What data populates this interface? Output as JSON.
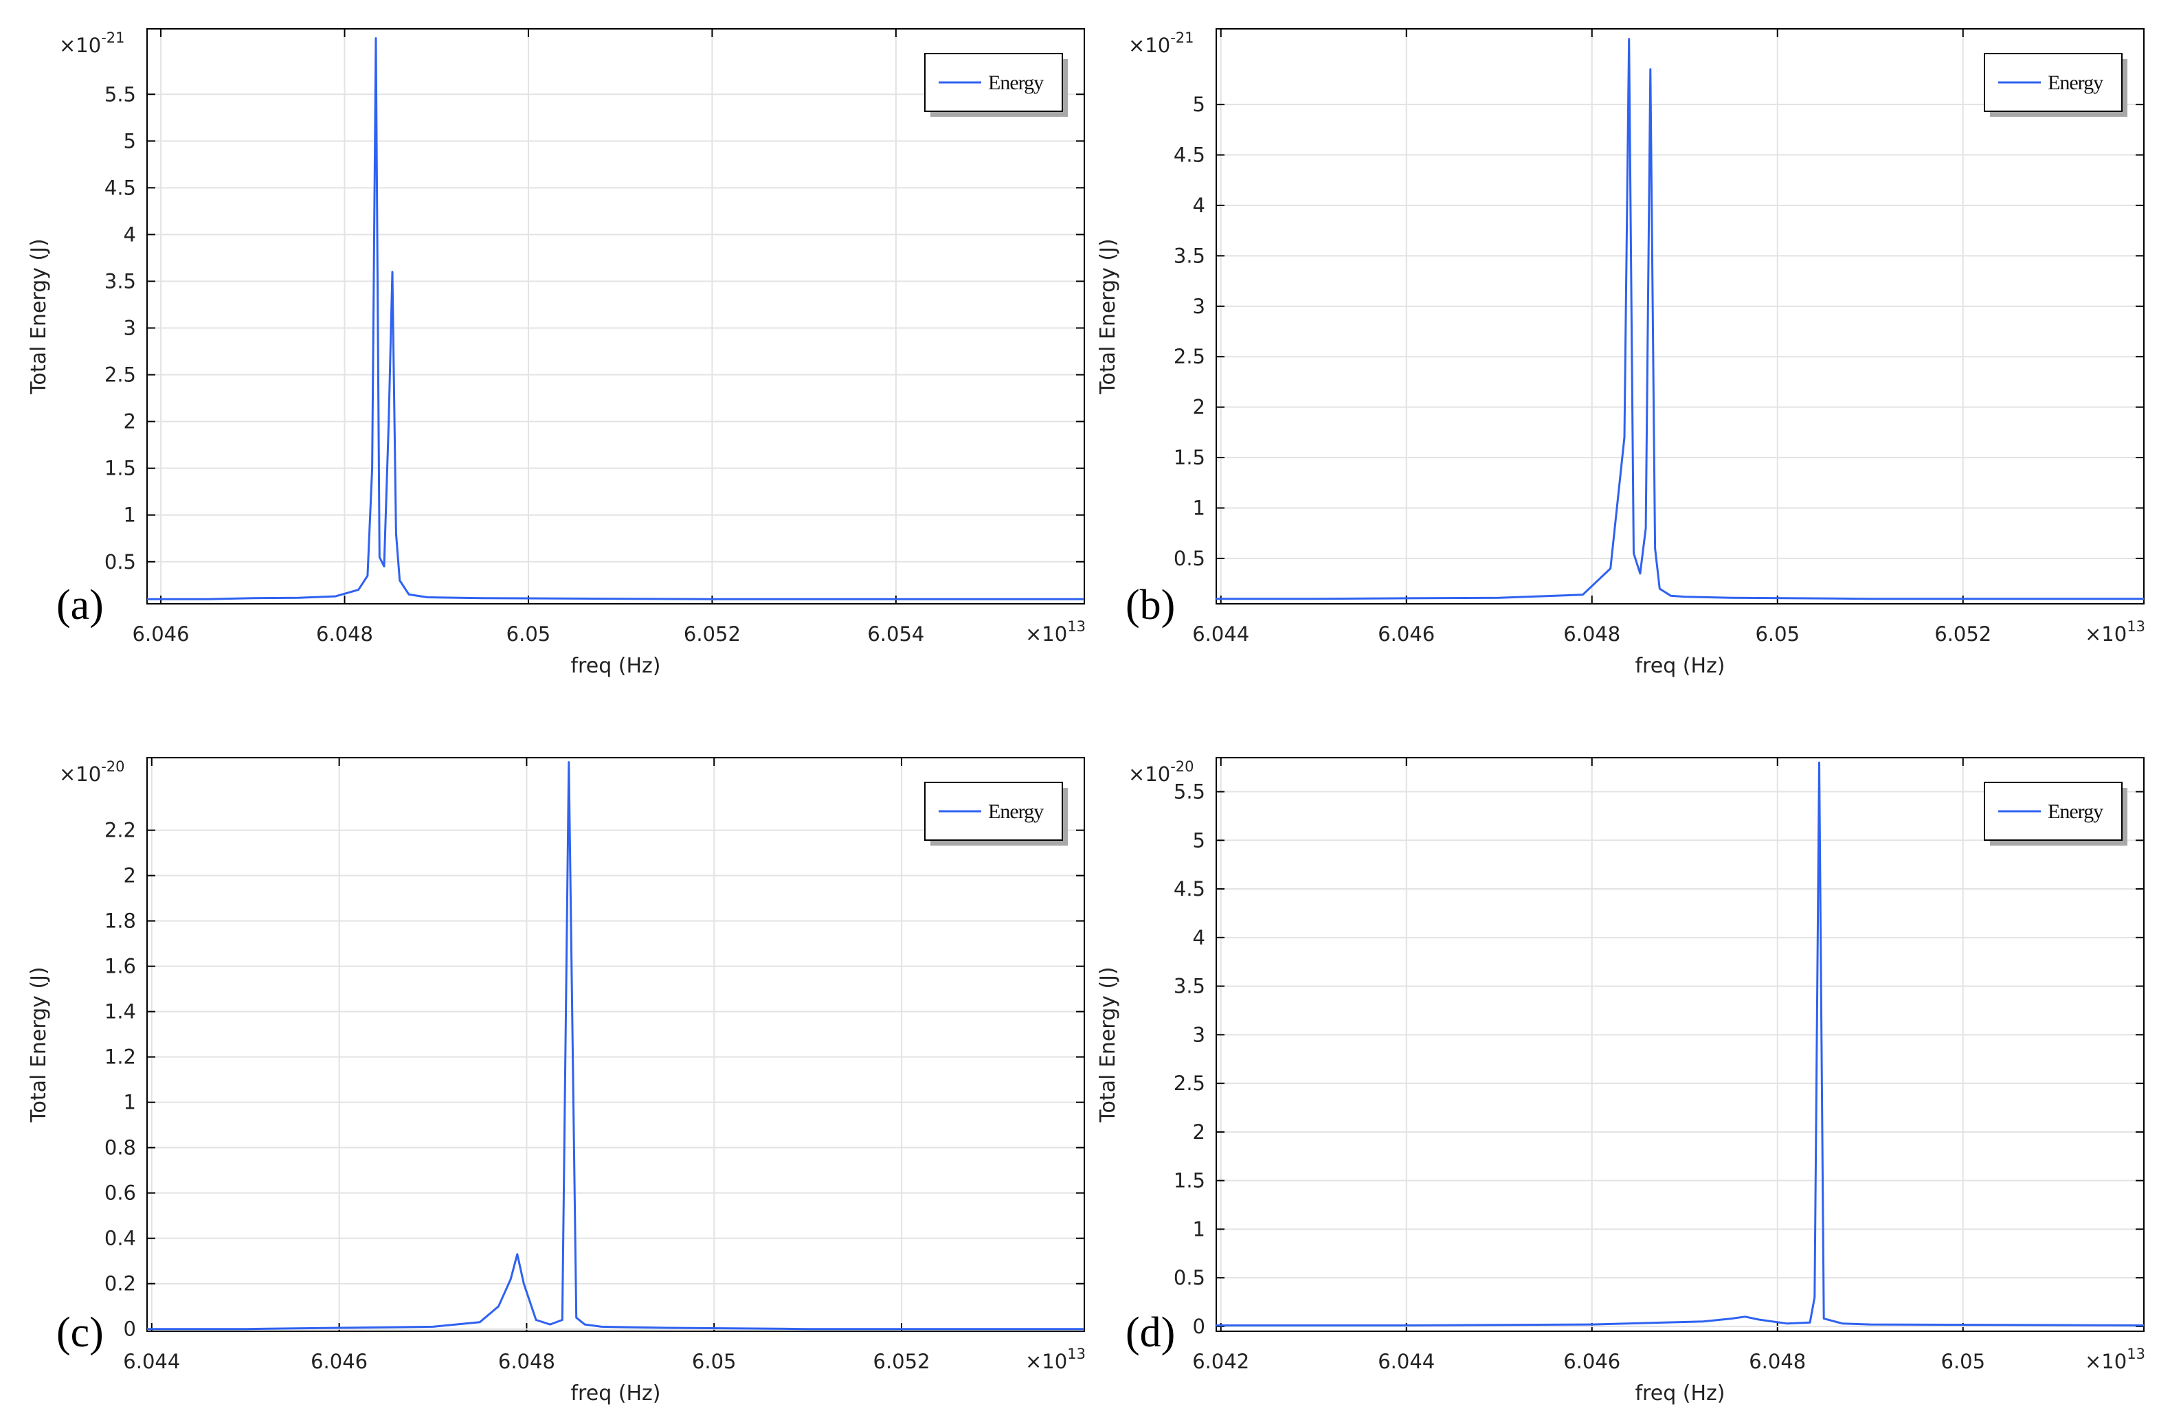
{
  "chart_data": [
    {
      "type": "line",
      "panel_label": "(a)",
      "xlabel": "freq (Hz)",
      "ylabel": "Total Energy (J)",
      "x_multiplier": "×10",
      "x_exp": "13",
      "y_multiplier": "×10",
      "y_exp": "-21",
      "x_ticks": [
        "6.046",
        "6.048",
        "6.05",
        "6.052",
        "6.054"
      ],
      "y_ticks": [
        "0.5",
        "1",
        "1.5",
        "2",
        "2.5",
        "3",
        "3.5",
        "4",
        "4.5",
        "5",
        "5.5"
      ],
      "xlim": [
        6.04585,
        6.05605
      ],
      "ylim": [
        0.05,
        6.2
      ],
      "grid": true,
      "legend": "top-right",
      "series": [
        {
          "name": "Energy",
          "color": "#2f62f0",
          "x": [
            6.04585,
            6.0465,
            6.047,
            6.0475,
            6.0479,
            6.04815,
            6.04825,
            6.0483,
            6.04834,
            6.04838,
            6.04843,
            6.04848,
            6.04852,
            6.04856,
            6.0486,
            6.0487,
            6.0489,
            6.0495,
            6.052,
            6.05605
          ],
          "y": [
            0.1,
            0.1,
            0.11,
            0.115,
            0.13,
            0.2,
            0.35,
            1.5,
            6.1,
            0.55,
            0.45,
            2.0,
            3.6,
            0.8,
            0.3,
            0.15,
            0.12,
            0.11,
            0.1,
            0.1
          ]
        }
      ]
    },
    {
      "type": "line",
      "panel_label": "(b)",
      "xlabel": "freq (Hz)",
      "ylabel": "Total Energy (J)",
      "x_multiplier": "×10",
      "x_exp": "13",
      "y_multiplier": "×10",
      "y_exp": "-21",
      "x_ticks": [
        "6.044",
        "6.046",
        "6.048",
        "6.05",
        "6.052"
      ],
      "y_ticks": [
        "0.5",
        "1",
        "1.5",
        "2",
        "2.5",
        "3",
        "3.5",
        "4",
        "4.5",
        "5"
      ],
      "xlim": [
        6.04395,
        6.05395
      ],
      "ylim": [
        0.05,
        5.75
      ],
      "grid": true,
      "legend": "top-right",
      "series": [
        {
          "name": "Energy",
          "color": "#2f62f0",
          "x": [
            6.04395,
            6.045,
            6.046,
            6.047,
            6.0479,
            6.0482,
            6.04835,
            6.0484,
            6.04845,
            6.04852,
            6.04858,
            6.04863,
            6.04868,
            6.04873,
            6.04885,
            6.049,
            6.0495,
            6.051,
            6.05395
          ],
          "y": [
            0.1,
            0.1,
            0.105,
            0.11,
            0.14,
            0.4,
            1.7,
            5.65,
            0.55,
            0.35,
            0.8,
            5.35,
            0.6,
            0.2,
            0.13,
            0.12,
            0.11,
            0.1,
            0.1
          ]
        }
      ]
    },
    {
      "type": "line",
      "panel_label": "(c)",
      "xlabel": "freq (Hz)",
      "ylabel": "Total Energy (J)",
      "x_multiplier": "×10",
      "x_exp": "13",
      "y_multiplier": "×10",
      "y_exp": "-20",
      "x_ticks": [
        "6.044",
        "6.046",
        "6.048",
        "6.05",
        "6.052"
      ],
      "y_ticks": [
        "0",
        "0.2",
        "0.4",
        "0.6",
        "0.8",
        "1",
        "1.2",
        "1.4",
        "1.6",
        "1.8",
        "2",
        "2.2"
      ],
      "xlim": [
        6.04395,
        6.05395
      ],
      "ylim": [
        -0.01,
        2.52
      ],
      "grid": true,
      "legend": "top-right",
      "series": [
        {
          "name": "Energy",
          "color": "#2f62f0",
          "x": [
            6.04395,
            6.045,
            6.046,
            6.047,
            6.0475,
            6.0477,
            6.04783,
            6.0479,
            6.04797,
            6.0481,
            6.04825,
            6.04838,
            6.04845,
            6.04853,
            6.04862,
            6.0488,
            6.0495,
            6.051,
            6.05395
          ],
          "y": [
            0.0,
            0.0,
            0.005,
            0.01,
            0.03,
            0.1,
            0.22,
            0.33,
            0.2,
            0.04,
            0.02,
            0.04,
            2.5,
            0.05,
            0.02,
            0.01,
            0.005,
            0.0,
            0.0
          ]
        }
      ]
    },
    {
      "type": "line",
      "panel_label": "(d)",
      "xlabel": "freq (Hz)",
      "ylabel": "Total Energy (J)",
      "x_multiplier": "×10",
      "x_exp": "13",
      "y_multiplier": "×10",
      "y_exp": "-20",
      "x_ticks": [
        "6.042",
        "6.044",
        "6.046",
        "6.048",
        "6.05"
      ],
      "y_ticks": [
        "0",
        "0.5",
        "1",
        "1.5",
        "2",
        "2.5",
        "3",
        "3.5",
        "4",
        "4.5",
        "5",
        "5.5"
      ],
      "xlim": [
        6.04195,
        6.05195
      ],
      "ylim": [
        -0.05,
        5.85
      ],
      "grid": true,
      "legend": "top-right",
      "series": [
        {
          "name": "Energy",
          "color": "#2f62f0",
          "x": [
            6.04195,
            6.044,
            6.046,
            6.0472,
            6.0475,
            6.04765,
            6.0478,
            6.0481,
            6.04835,
            6.0484,
            6.04845,
            6.0485,
            6.0487,
            6.049,
            6.05195
          ],
          "y": [
            0.01,
            0.01,
            0.02,
            0.05,
            0.08,
            0.1,
            0.07,
            0.03,
            0.04,
            0.3,
            5.8,
            0.08,
            0.03,
            0.02,
            0.01
          ]
        }
      ]
    }
  ]
}
